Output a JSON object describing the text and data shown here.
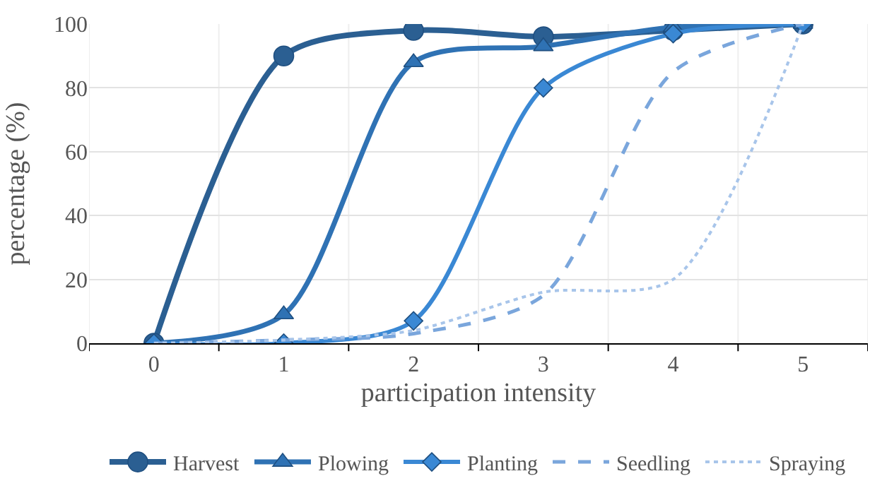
{
  "chart_data": {
    "type": "line",
    "xlabel": "participation intensity",
    "ylabel": "percentage (%)",
    "categories": [
      "0",
      "1",
      "2",
      "3",
      "4",
      "5"
    ],
    "series": [
      {
        "name": "Harvest",
        "color": "#2b5f92",
        "marker": "circle",
        "line_style": "solid",
        "values": [
          0,
          90,
          98,
          96,
          98,
          100
        ]
      },
      {
        "name": "Plowing",
        "color": "#2f72b4",
        "marker": "triangle",
        "line_style": "solid",
        "values": [
          0,
          9,
          88,
          93,
          99,
          100
        ]
      },
      {
        "name": "Planting",
        "color": "#3a88d4",
        "marker": "diamond",
        "line_style": "solid",
        "values": [
          0,
          0,
          7,
          80,
          97,
          100
        ]
      },
      {
        "name": "Seedling",
        "color": "#7aa6dc",
        "marker": "none",
        "line_style": "dashed",
        "values": [
          0,
          1,
          3,
          15,
          85,
          100
        ]
      },
      {
        "name": "Spraying",
        "color": "#a8c5ea",
        "marker": "none",
        "line_style": "dotted",
        "values": [
          0,
          1,
          4,
          16,
          20,
          100
        ]
      }
    ],
    "ylim": [
      0,
      100
    ],
    "yticks": [
      0,
      20,
      40,
      60,
      80,
      100
    ],
    "grid": true,
    "legend": "bottom"
  }
}
